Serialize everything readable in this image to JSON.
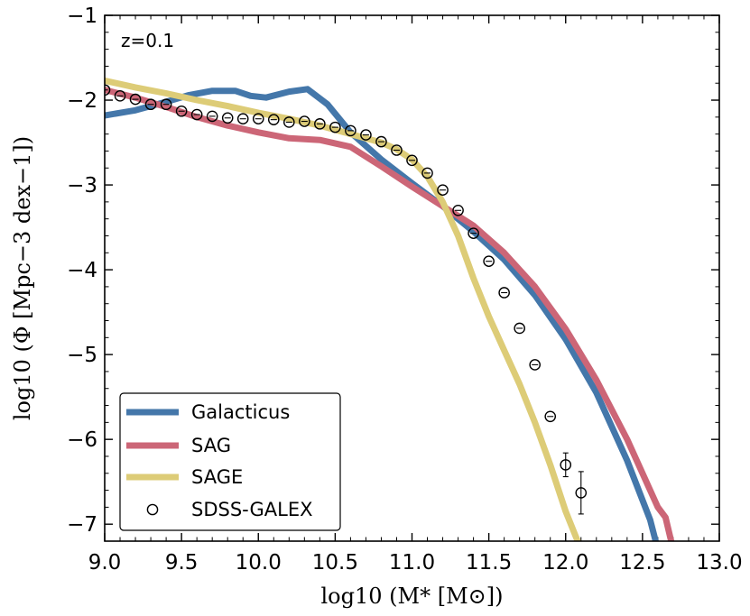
{
  "chart_data": {
    "type": "line",
    "annotation": "z=0.1",
    "xlabel": "log10 (M* [M⊙])",
    "ylabel": "log10 (Φ [Mpc−3 dex−1])",
    "xlim": [
      9.0,
      13.0
    ],
    "ylim": [
      -7.2,
      -1.0
    ],
    "xticks": [
      9.0,
      9.5,
      10.0,
      10.5,
      11.0,
      11.5,
      12.0,
      12.5,
      13.0
    ],
    "xtick_labels": [
      "9.0",
      "9.5",
      "10.0",
      "10.5",
      "11.0",
      "11.5",
      "12.0",
      "12.5",
      "13.0"
    ],
    "yticks": [
      -1,
      -2,
      -3,
      -4,
      -5,
      -6,
      -7
    ],
    "ytick_labels": [
      "−1",
      "−2",
      "−3",
      "−4",
      "−5",
      "−6",
      "−7"
    ],
    "series": [
      {
        "name": "Galacticus",
        "color": "#4477aa",
        "x": [
          9.0,
          9.2,
          9.4,
          9.55,
          9.7,
          9.85,
          9.95,
          10.05,
          10.2,
          10.32,
          10.45,
          10.6,
          10.8,
          11.0,
          11.2,
          11.4,
          11.6,
          11.8,
          12.0,
          12.2,
          12.4,
          12.55,
          12.6
        ],
        "y": [
          -2.18,
          -2.12,
          -2.02,
          -1.94,
          -1.89,
          -1.89,
          -1.95,
          -1.97,
          -1.9,
          -1.87,
          -2.05,
          -2.38,
          -2.7,
          -2.98,
          -3.25,
          -3.55,
          -3.88,
          -4.3,
          -4.82,
          -5.45,
          -6.25,
          -6.95,
          -7.3
        ]
      },
      {
        "name": "SAG",
        "color": "#cc6677",
        "x": [
          9.0,
          9.2,
          9.4,
          9.6,
          9.8,
          10.0,
          10.2,
          10.4,
          10.6,
          10.8,
          11.0,
          11.2,
          11.4,
          11.6,
          11.8,
          12.0,
          12.2,
          12.4,
          12.6,
          12.65,
          12.7
        ],
        "y": [
          -1.88,
          -1.97,
          -2.08,
          -2.2,
          -2.3,
          -2.38,
          -2.45,
          -2.47,
          -2.55,
          -2.78,
          -3.02,
          -3.25,
          -3.48,
          -3.8,
          -4.2,
          -4.7,
          -5.3,
          -6.0,
          -6.8,
          -6.92,
          -7.3
        ]
      },
      {
        "name": "SAGE",
        "color": "#ddcc77",
        "x": [
          9.0,
          9.2,
          9.4,
          9.6,
          9.8,
          10.0,
          10.2,
          10.4,
          10.6,
          10.8,
          10.9,
          11.0,
          11.1,
          11.2,
          11.3,
          11.4,
          11.5,
          11.6,
          11.7,
          11.8,
          11.9,
          12.0,
          12.1
        ],
        "y": [
          -1.77,
          -1.85,
          -1.92,
          -2.0,
          -2.07,
          -2.15,
          -2.22,
          -2.3,
          -2.4,
          -2.5,
          -2.58,
          -2.7,
          -2.9,
          -3.2,
          -3.6,
          -4.1,
          -4.55,
          -4.95,
          -5.35,
          -5.8,
          -6.3,
          -6.85,
          -7.3
        ]
      }
    ],
    "points": {
      "name": "SDSS-GALEX",
      "x": [
        9.0,
        9.1,
        9.2,
        9.3,
        9.4,
        9.5,
        9.6,
        9.7,
        9.8,
        9.9,
        10.0,
        10.1,
        10.2,
        10.3,
        10.4,
        10.5,
        10.6,
        10.7,
        10.8,
        10.9,
        11.0,
        11.1,
        11.2,
        11.3,
        11.4,
        11.5,
        11.6,
        11.7,
        11.8,
        11.9,
        12.0,
        12.1
      ],
      "y": [
        -1.88,
        -1.95,
        -1.99,
        -2.05,
        -2.05,
        -2.13,
        -2.17,
        -2.19,
        -2.21,
        -2.22,
        -2.22,
        -2.23,
        -2.26,
        -2.25,
        -2.28,
        -2.32,
        -2.36,
        -2.41,
        -2.49,
        -2.59,
        -2.71,
        -2.86,
        -3.06,
        -3.3,
        -3.57,
        -3.9,
        -4.27,
        -4.69,
        -5.12,
        -5.73,
        -6.3,
        -6.63
      ],
      "err": [
        0.0,
        0.0,
        0.0,
        0.0,
        0.0,
        0.0,
        0.0,
        0.0,
        0.0,
        0.0,
        0.0,
        0.0,
        0.0,
        0.0,
        0.0,
        0.0,
        0.0,
        0.0,
        0.0,
        0.0,
        0.0,
        0.0,
        0.0,
        0.0,
        0.0,
        0.0,
        0.0,
        0.0,
        0.0,
        0.0,
        0.14,
        0.25
      ]
    },
    "legend": {
      "placement": "lower-left",
      "entries": [
        "Galacticus",
        "SAG",
        "SAGE",
        "SDSS-GALEX"
      ]
    }
  }
}
